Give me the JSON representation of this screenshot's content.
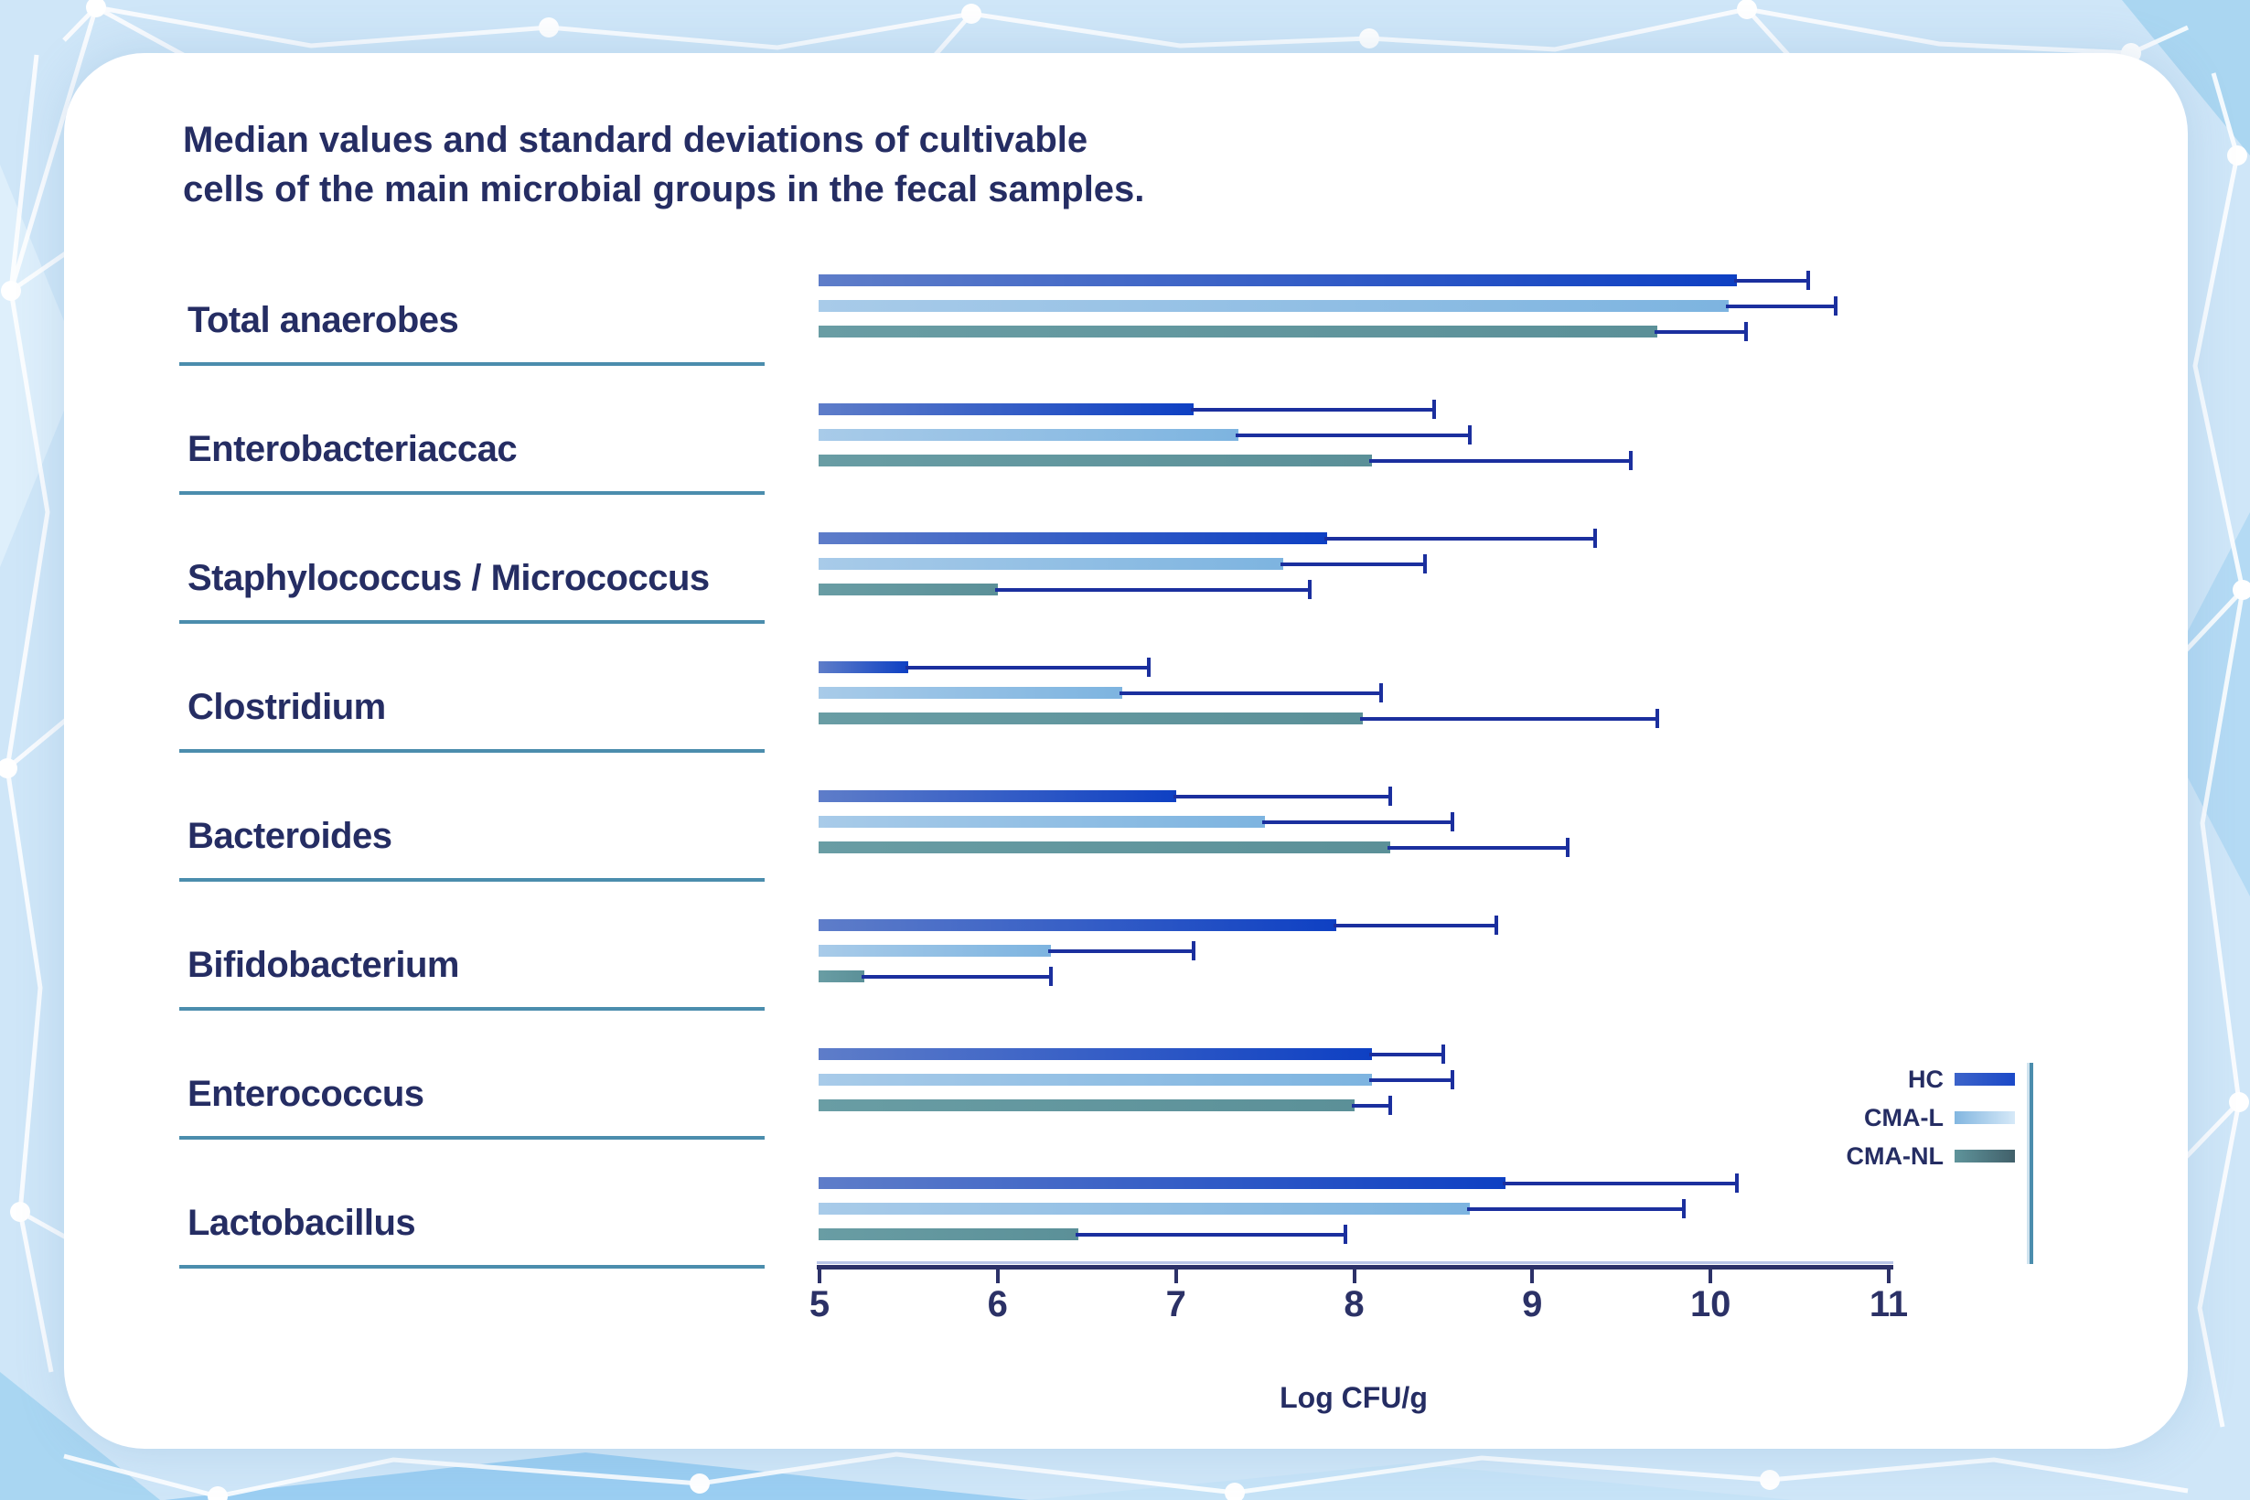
{
  "chart_data": {
    "type": "bar",
    "orientation": "horizontal",
    "title": "Median values and standard deviations of cultivable\ncells of the main microbial groups in the fecal samples.",
    "xlabel": "Log CFU/g",
    "xlim": [
      5,
      11
    ],
    "xticks": [
      5,
      6,
      7,
      8,
      9,
      10,
      11
    ],
    "grid": false,
    "legend_position": "right",
    "error_bars": "standard deviation, upper whisker only",
    "categories": [
      "Total anaerobes",
      "Enterobacteriaccac",
      "Staphylococcus / Micrococcus",
      "Clostridium",
      "Bacteroides",
      "Bifidobacterium",
      "Enterococcus",
      "Lactobacillus"
    ],
    "series": [
      {
        "name": "HC",
        "values": [
          10.15,
          7.1,
          7.85,
          5.5,
          7.0,
          7.9,
          8.1,
          8.85
        ],
        "sd": [
          0.4,
          1.35,
          1.5,
          1.35,
          1.2,
          0.9,
          0.4,
          1.3
        ]
      },
      {
        "name": "CMA-L",
        "values": [
          10.1,
          7.35,
          7.6,
          6.7,
          7.5,
          6.3,
          8.1,
          8.65
        ],
        "sd": [
          0.6,
          1.3,
          0.8,
          1.45,
          1.05,
          0.8,
          0.45,
          1.2
        ]
      },
      {
        "name": "CMA-NL",
        "values": [
          9.7,
          8.1,
          6.0,
          8.05,
          8.2,
          5.25,
          8.0,
          6.45
        ],
        "sd": [
          0.5,
          1.45,
          1.75,
          1.65,
          1.0,
          1.05,
          0.2,
          1.5
        ]
      }
    ]
  },
  "colors": {
    "background": "#cfe6f8",
    "card": "#ffffff",
    "navy_text": "#252d63",
    "whisker": "#1b2f9e",
    "axis": "#2c3168",
    "axis_highlight": "#b9c5e8",
    "underline_teal": "#4b8dad",
    "hc": {
      "bar_start": "#5e7dc9",
      "bar_end": "#0e40c3",
      "legend_start": "#3c63c9",
      "legend_end": "#1b49c8"
    },
    "cma_l": {
      "bar_start": "#a8cbe9",
      "bar_end": "#7db4e0",
      "legend_start": "#82b6e0",
      "legend_end": "#d6e9f8"
    },
    "cma_nl": {
      "bar_start": "#699da4",
      "bar_end": "#5b9098",
      "legend_start": "#5f949b",
      "legend_end": "#41606a"
    }
  }
}
